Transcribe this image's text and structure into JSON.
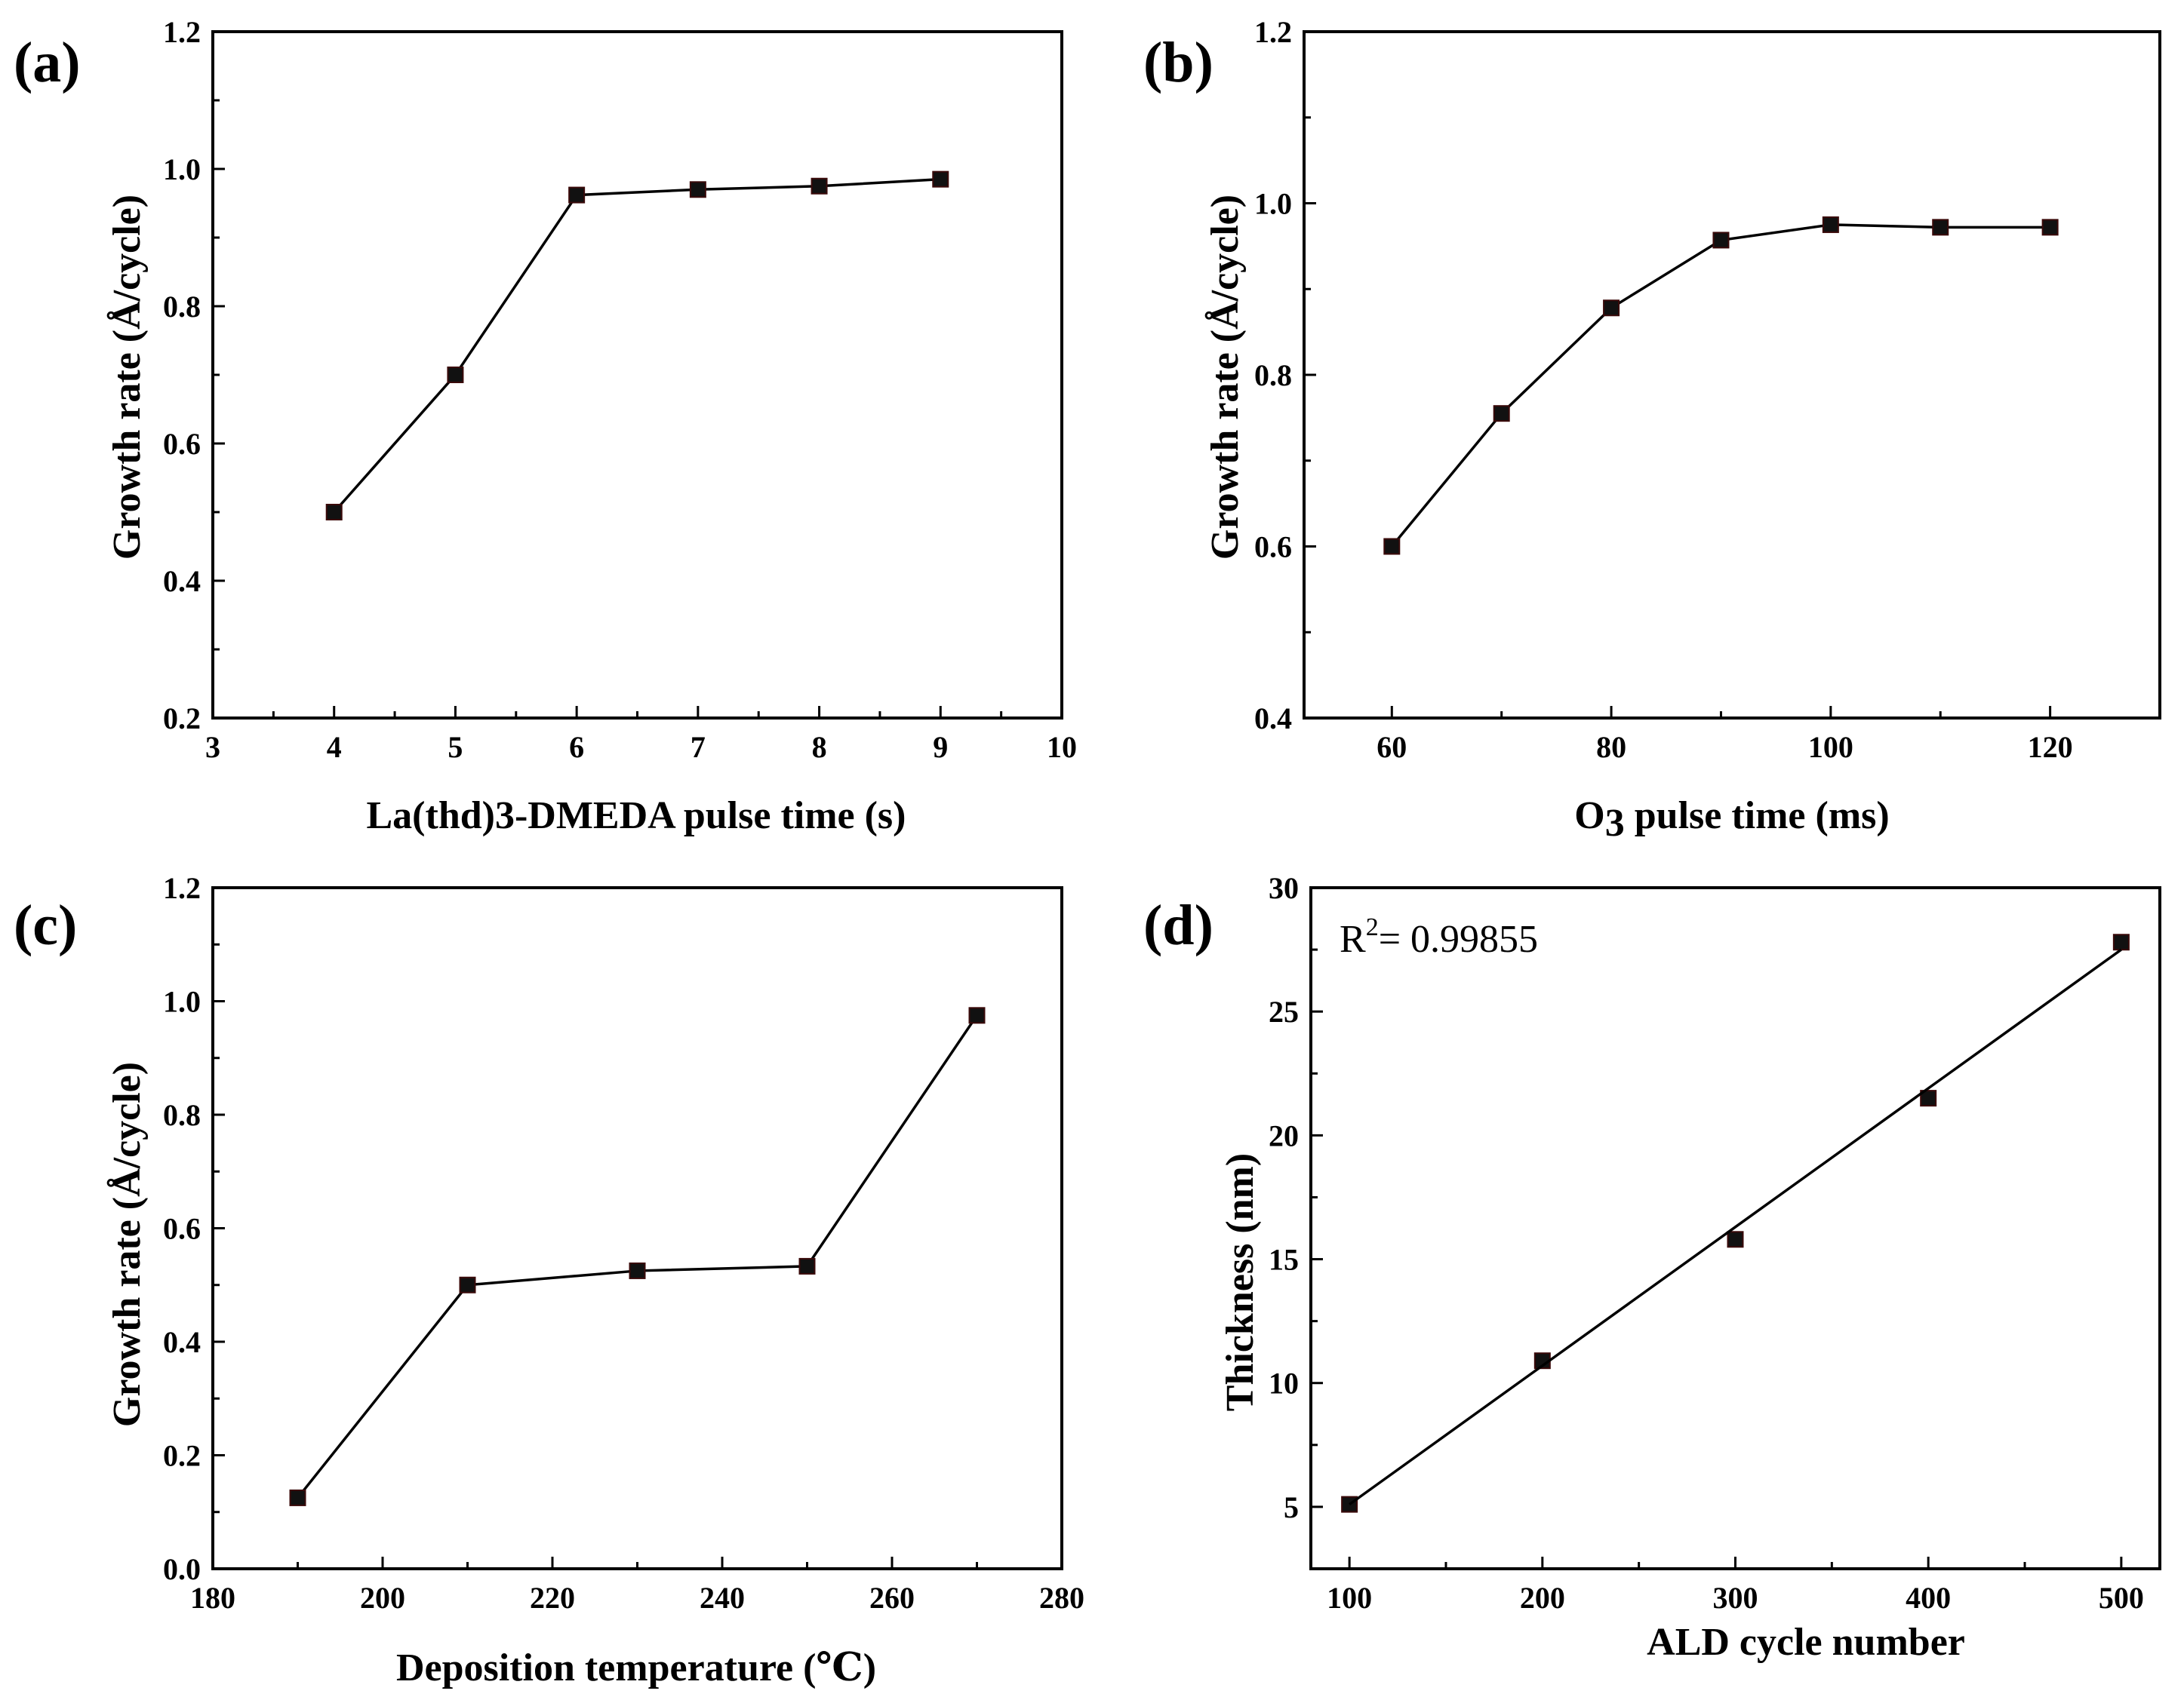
{
  "chart_data": [
    {
      "id": "a",
      "type": "line",
      "panel_label": "(a)",
      "xlabel": "La(thd)3-DMEDA pulse time  (s)",
      "ylabel": "Growth rate (Å/cycle)",
      "xlim": [
        3,
        10
      ],
      "ylim": [
        0.2,
        1.2
      ],
      "xticks": [
        3,
        4,
        5,
        6,
        7,
        8,
        9,
        10
      ],
      "xtick_labels": [
        "3",
        "4",
        "5",
        "6",
        "7",
        "8",
        "9",
        "10"
      ],
      "yticks": [
        0.2,
        0.4,
        0.6,
        0.8,
        1.0,
        1.2
      ],
      "ytick_labels": [
        "0.2",
        "0.4",
        "0.6",
        "0.8",
        "1.0",
        "1.2"
      ],
      "series": [
        {
          "name": "Growth rate",
          "x": [
            4,
            5,
            6,
            7,
            8,
            9
          ],
          "y": [
            0.5,
            0.7,
            0.962,
            0.97,
            0.975,
            0.985
          ]
        }
      ]
    },
    {
      "id": "b",
      "type": "line",
      "panel_label": "(b)",
      "xlabel": "O3  pulse time  (ms)",
      "ylabel": "Growth rate (Å/cycle)",
      "xlim": [
        52,
        130
      ],
      "ylim": [
        0.4,
        1.2
      ],
      "xticks": [
        60,
        80,
        100,
        120
      ],
      "xtick_labels": [
        "60",
        "80",
        "100",
        "120"
      ],
      "yticks": [
        0.4,
        0.6,
        0.8,
        1.0,
        1.2
      ],
      "ytick_labels": [
        "0.4",
        "0.6",
        "0.8",
        "1.0",
        "1.2"
      ],
      "series": [
        {
          "name": "Growth rate",
          "x": [
            60,
            70,
            80,
            90,
            100,
            110,
            120
          ],
          "y": [
            0.6,
            0.755,
            0.878,
            0.957,
            0.975,
            0.972,
            0.972
          ]
        }
      ]
    },
    {
      "id": "c",
      "type": "line",
      "panel_label": "(c)",
      "xlabel": "Deposition temperature (℃)",
      "ylabel": "Growth rate (Å/cycle)",
      "xlim": [
        180,
        280
      ],
      "ylim": [
        0.0,
        1.2
      ],
      "xticks": [
        180,
        200,
        220,
        240,
        260,
        280
      ],
      "xtick_labels": [
        "180",
        "200",
        "220",
        "240",
        "260",
        "280"
      ],
      "yticks": [
        0.0,
        0.2,
        0.4,
        0.6,
        0.8,
        1.0,
        1.2
      ],
      "ytick_labels": [
        "0.0",
        "0.2",
        "0.4",
        "0.6",
        "0.8",
        "1.0",
        "1.2"
      ],
      "series": [
        {
          "name": "Growth rate",
          "x": [
            190,
            210,
            230,
            250,
            270
          ],
          "y": [
            0.125,
            0.5,
            0.525,
            0.533,
            0.975
          ]
        }
      ]
    },
    {
      "id": "d",
      "type": "scatter",
      "panel_label": "(d)",
      "xlabel": "ALD cycle number",
      "ylabel": "Thickness (nm)",
      "xlim": [
        80,
        520
      ],
      "ylim": [
        2.5,
        30
      ],
      "xticks": [
        100,
        200,
        300,
        400,
        500
      ],
      "xtick_labels": [
        "100",
        "200",
        "300",
        "400",
        "500"
      ],
      "yticks": [
        5,
        10,
        15,
        20,
        25,
        30
      ],
      "ytick_labels": [
        "5",
        "10",
        "15",
        "20",
        "25",
        "30"
      ],
      "annotation": {
        "prefix": "R",
        "superscript": "2",
        "text": "= 0.99855"
      },
      "series": [
        {
          "name": "Thickness",
          "x": [
            100,
            200,
            300,
            400,
            500
          ],
          "y": [
            5.1,
            10.9,
            15.8,
            21.5,
            27.8
          ]
        }
      ],
      "fit_line": {
        "x": [
          100,
          500
        ],
        "y": [
          5.1,
          27.5
        ]
      }
    }
  ]
}
